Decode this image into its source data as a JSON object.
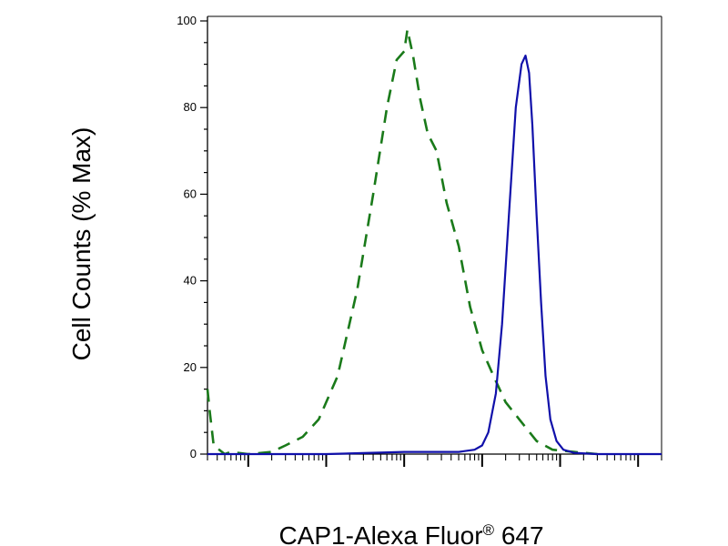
{
  "chart_data": {
    "type": "line",
    "xlabel": "CAP1-Alexa Fluor",
    "xlabel_superscript": "®",
    "xlabel_suffix": " 647",
    "ylabel": "Cell Counts (% Max)",
    "xscale": "log",
    "xlim": [
      0.3,
      200000
    ],
    "ylim": [
      0,
      100
    ],
    "grid": false,
    "yticks": [
      {
        "value": 0,
        "label": "0"
      },
      {
        "value": 20,
        "label": "20"
      },
      {
        "value": 40,
        "label": "40"
      },
      {
        "value": 60,
        "label": "60"
      },
      {
        "value": 80,
        "label": "80"
      },
      {
        "value": 100,
        "label": "100"
      }
    ],
    "series": [
      {
        "color": "#1a7a1a",
        "style": "dashed",
        "points": [
          [
            0.3,
            15
          ],
          [
            0.32,
            10
          ],
          [
            0.36,
            2
          ],
          [
            0.5,
            0
          ],
          [
            0.6,
            0.5
          ],
          [
            1,
            0
          ],
          [
            2,
            0.5
          ],
          [
            3,
            2
          ],
          [
            5,
            4
          ],
          [
            8,
            8
          ],
          [
            14,
            18
          ],
          [
            25,
            38
          ],
          [
            40,
            60
          ],
          [
            60,
            80
          ],
          [
            80,
            91
          ],
          [
            100,
            93
          ],
          [
            110,
            98
          ],
          [
            130,
            92
          ],
          [
            160,
            82
          ],
          [
            200,
            74
          ],
          [
            260,
            70
          ],
          [
            350,
            58
          ],
          [
            500,
            48
          ],
          [
            700,
            34
          ],
          [
            1000,
            24
          ],
          [
            1400,
            18
          ],
          [
            2000,
            12
          ],
          [
            3000,
            8
          ],
          [
            5000,
            3
          ],
          [
            8000,
            1
          ],
          [
            15000,
            0.5
          ],
          [
            30000,
            0
          ]
        ]
      },
      {
        "color": "#1010aa",
        "style": "solid",
        "points": [
          [
            0.3,
            0
          ],
          [
            10,
            0
          ],
          [
            100,
            0.5
          ],
          [
            500,
            0.5
          ],
          [
            800,
            1
          ],
          [
            1000,
            2
          ],
          [
            1200,
            5
          ],
          [
            1500,
            14
          ],
          [
            1800,
            30
          ],
          [
            2200,
            55
          ],
          [
            2700,
            80
          ],
          [
            3200,
            90
          ],
          [
            3600,
            92
          ],
          [
            4000,
            88
          ],
          [
            4400,
            76
          ],
          [
            5000,
            55
          ],
          [
            5700,
            35
          ],
          [
            6500,
            18
          ],
          [
            7500,
            8
          ],
          [
            9000,
            3
          ],
          [
            11000,
            1
          ],
          [
            15000,
            0.3
          ],
          [
            30000,
            0
          ],
          [
            200000,
            0
          ]
        ]
      }
    ]
  }
}
